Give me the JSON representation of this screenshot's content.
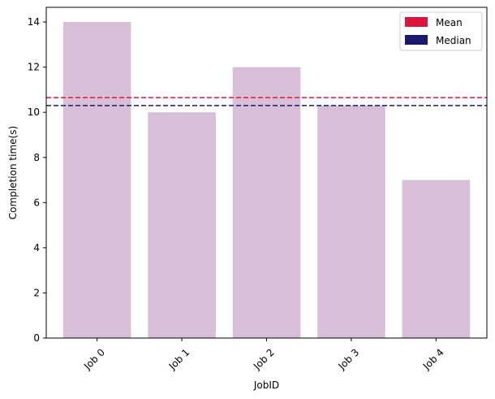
{
  "chart_data": {
    "type": "bar",
    "title": "",
    "xlabel": "JobID",
    "ylabel": "Completion time(s)",
    "categories": [
      "Job 0",
      "Job 1",
      "Job 2",
      "Job 3",
      "Job 4"
    ],
    "values": [
      14,
      10,
      12,
      10.3,
      7
    ],
    "ylim": [
      0,
      14.65
    ],
    "yticks": [
      0,
      2,
      4,
      6,
      8,
      10,
      12,
      14
    ],
    "grid": false,
    "bar_color": "#d8bfd8",
    "reference_lines": [
      {
        "name": "Mean",
        "value": 10.65,
        "color": "#dc143c",
        "style": "dashed"
      },
      {
        "name": "Median",
        "value": 10.3,
        "color": "#191970",
        "style": "dashed"
      }
    ],
    "legend": {
      "placement": "top-right",
      "entries": [
        {
          "label": "Mean",
          "color": "#dc143c"
        },
        {
          "label": "Median",
          "color": "#191970"
        }
      ]
    }
  }
}
